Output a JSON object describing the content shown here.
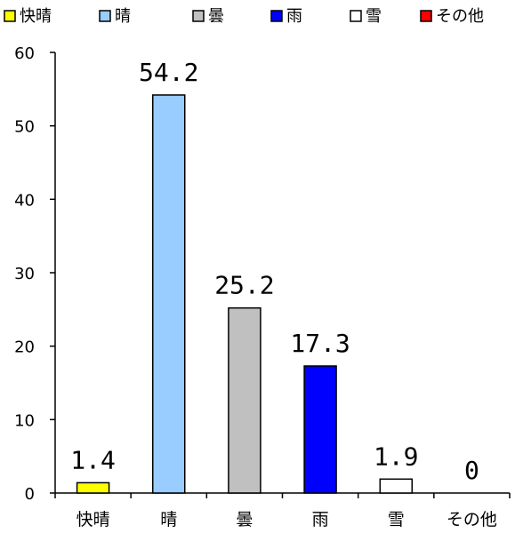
{
  "chart_data": {
    "type": "bar",
    "categories": [
      "快晴",
      "晴",
      "曇",
      "雨",
      "雪",
      "その他"
    ],
    "values": [
      1.4,
      54.2,
      25.2,
      17.3,
      1.9,
      0
    ],
    "value_labels": [
      "1.4",
      "54.2",
      "25.2",
      "17.3",
      "1.9",
      "0"
    ],
    "colors": [
      "#ffff00",
      "#99ccff",
      "#c0c0c0",
      "#0000ff",
      "#ffffff",
      "#ff0000"
    ],
    "yticks": [
      "0",
      "10",
      "20",
      "30",
      "40",
      "50",
      "60"
    ],
    "ylim": [
      0,
      60
    ],
    "legend_position": "top",
    "grid": false
  }
}
